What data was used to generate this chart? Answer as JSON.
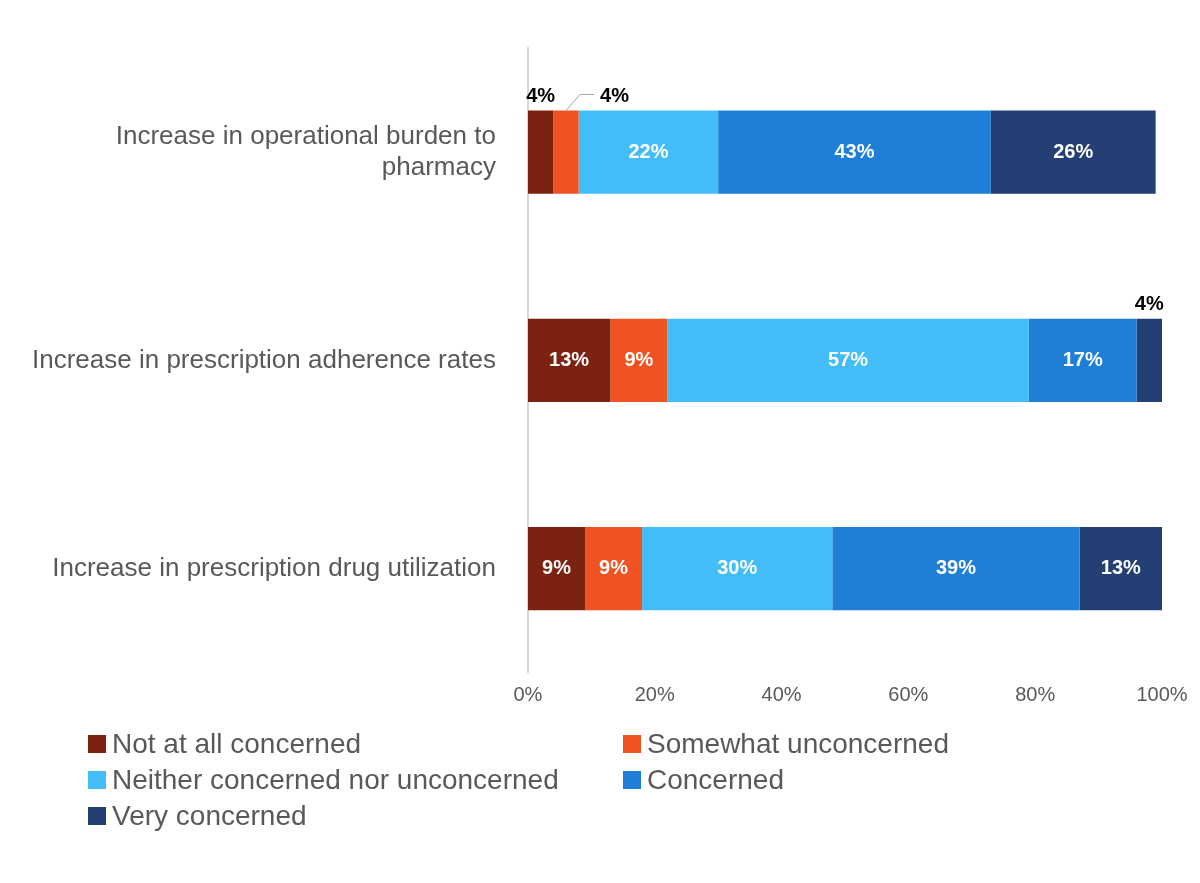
{
  "chart_data": {
    "type": "bar",
    "orientation": "horizontal",
    "stacked": true,
    "legend": "bottom",
    "categories": [
      "Increase in operational burden to pharmacy",
      "Increase in prescription adherence rates",
      "Increase in prescription drug utilization"
    ],
    "series": [
      {
        "name": "Not at all concerned",
        "color": "#7b2310",
        "values": [
          4,
          13,
          9
        ],
        "value_labels": [
          "4%",
          "13%",
          "9%"
        ]
      },
      {
        "name": "Somewhat unconcerned",
        "color": "#f05323",
        "values": [
          4,
          9,
          9
        ],
        "value_labels": [
          "4%",
          "9%",
          "9%"
        ]
      },
      {
        "name": "Neither concerned nor unconcerned",
        "color": "#43bdf8",
        "values": [
          22,
          57,
          30
        ],
        "value_labels": [
          "22%",
          "57%",
          "30%"
        ]
      },
      {
        "name": "Concerned",
        "color": "#1f7ed6",
        "values": [
          43,
          17,
          39
        ],
        "value_labels": [
          "43%",
          "17%",
          "39%"
        ]
      },
      {
        "name": "Very concerned",
        "color": "#243f73",
        "values": [
          26,
          4,
          13
        ],
        "value_labels": [
          "26%",
          "4%",
          "13%"
        ]
      }
    ],
    "xlim": [
      0,
      100
    ],
    "xticks": [
      {
        "value": 0,
        "label": "0%"
      },
      {
        "value": 20,
        "label": "20%"
      },
      {
        "value": 40,
        "label": "40%"
      },
      {
        "value": 60,
        "label": "60%"
      },
      {
        "value": 80,
        "label": "80%"
      },
      {
        "value": 100,
        "label": "100%"
      }
    ]
  }
}
